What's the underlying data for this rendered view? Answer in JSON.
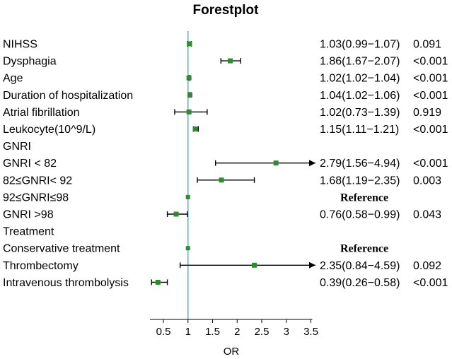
{
  "chart_data": {
    "type": "forest",
    "title": "Forestplot",
    "xlabel": "OR",
    "xlim": [
      0.3,
      3.5
    ],
    "xticks": [
      "0.5",
      "1",
      "1.5",
      "2",
      "2.5",
      "3",
      "3.5"
    ],
    "reference_line": 1,
    "colors": {
      "point": "#2e8b2e",
      "refline": "#5bb8cf",
      "whisker": "#000000"
    },
    "rows": [
      {
        "label": "NIHSS",
        "or": 1.03,
        "lower": 0.99,
        "upper": 1.07,
        "ci_text": "1.03(0.99−1.07)",
        "p": "0.091"
      },
      {
        "label": "Dysphagia",
        "or": 1.86,
        "lower": 1.67,
        "upper": 2.07,
        "ci_text": "1.86(1.67−2.07)",
        "p": "<0.001"
      },
      {
        "label": "Age",
        "or": 1.02,
        "lower": 1.02,
        "upper": 1.04,
        "ci_text": "1.02(1.02−1.04)",
        "p": "<0.001"
      },
      {
        "label": "Duration of hospitalization",
        "or": 1.04,
        "lower": 1.02,
        "upper": 1.06,
        "ci_text": "1.04(1.02−1.06)",
        "p": "<0.001"
      },
      {
        "label": "Atrial fibrillation",
        "or": 1.02,
        "lower": 0.73,
        "upper": 1.39,
        "ci_text": "1.02(0.73−1.39)",
        "p": "0.919"
      },
      {
        "label": "Leukocyte(10^9/L)",
        "or": 1.15,
        "lower": 1.11,
        "upper": 1.21,
        "ci_text": "1.15(1.11−1.21)",
        "p": "<0.001"
      },
      {
        "label": "GNRI",
        "header": true
      },
      {
        "label": "GNRI < 82",
        "or": 2.79,
        "lower": 1.56,
        "upper": 4.94,
        "arrow_right": true,
        "ci_text": "2.79(1.56−4.94)",
        "p": "<0.001"
      },
      {
        "label": "82≤GNRI< 92",
        "or": 1.68,
        "lower": 1.19,
        "upper": 2.35,
        "ci_text": "1.68(1.19−2.35)",
        "p": "0.003"
      },
      {
        "label": "92≤GNRI≤98",
        "or": 1,
        "reference": true,
        "ref_text": "Reference"
      },
      {
        "label": "GNRI >98",
        "or": 0.76,
        "lower": 0.58,
        "upper": 0.99,
        "ci_text": "0.76(0.58−0.99)",
        "p": "0.043"
      },
      {
        "label": "Treatment",
        "header": true
      },
      {
        "label": "Conservative treatment",
        "or": 1,
        "reference": true,
        "ref_text": "Reference"
      },
      {
        "label": "Thrombectomy",
        "or": 2.35,
        "lower": 0.84,
        "upper": 4.59,
        "arrow_right": true,
        "ci_text": "2.35(0.84−4.59)",
        "p": "0.092"
      },
      {
        "label": "Intravenous thrombolysis",
        "or": 0.39,
        "lower": 0.26,
        "upper": 0.58,
        "arrow_left": true,
        "ci_text": "0.39(0.26−0.58)",
        "p": "<0.001"
      }
    ]
  }
}
